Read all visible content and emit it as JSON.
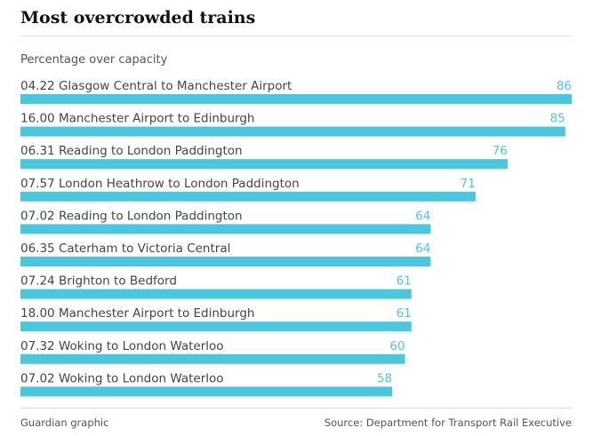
{
  "chart_data": {
    "type": "bar",
    "orientation": "horizontal",
    "title": "Most overcrowded trains",
    "subtitle": "Percentage over capacity",
    "categories": [
      "04.22 Glasgow Central to Manchester Airport",
      "16.00 Manchester Airport to Edinburgh",
      "06.31 Reading to London Paddington",
      "07.57 London Heathrow to London Paddington",
      "07.02 Reading to London Paddington",
      "06.35 Caterham to Victoria Central",
      "07.24 Brighton to Bedford",
      "18.00 Manchester Airport to Edinburgh",
      "07.32 Woking to London Waterloo",
      "07.02 Woking to London Waterloo"
    ],
    "values": [
      86,
      85,
      76,
      71,
      64,
      64,
      61,
      61,
      60,
      58
    ],
    "xlim": [
      0,
      86
    ],
    "grid": false,
    "legend": "none",
    "bar_color": "#4bc6df",
    "value_label_color": "#4bc6df"
  },
  "footer": {
    "credit": "Guardian graphic",
    "source": "Source: Department for Transport Rail Executive"
  }
}
